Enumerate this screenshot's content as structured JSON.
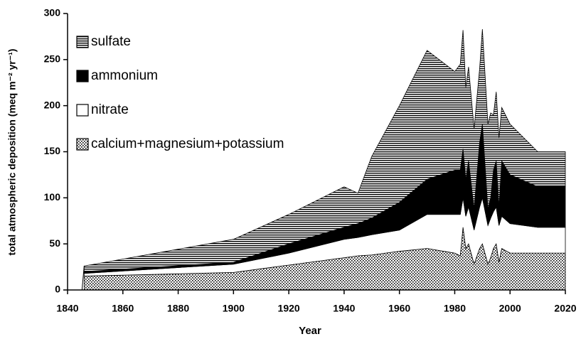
{
  "chart_data": {
    "type": "stacked-area",
    "x_label": "Year",
    "y_label": "total atmospheric deposition (meq m⁻² yr⁻¹)",
    "x": [
      1846,
      1900,
      1920,
      1940,
      1945,
      1950,
      1960,
      1970,
      1980,
      1982,
      1983,
      1984,
      1985,
      1987,
      1989,
      1990,
      1992,
      1993,
      1994,
      1995,
      1996,
      1997,
      2000,
      2010,
      2020
    ],
    "series": [
      {
        "name": "calcium+magnesium+potassium",
        "color": "#000000",
        "pattern": "dots",
        "values": [
          15,
          19,
          27,
          35,
          37,
          38,
          42,
          45,
          40,
          37,
          68,
          45,
          50,
          28,
          45,
          50,
          28,
          35,
          45,
          50,
          30,
          45,
          40,
          40,
          40
        ]
      },
      {
        "name": "nitrate",
        "color": "#ffffff",
        "pattern": "none",
        "values": [
          3,
          9,
          13,
          20,
          20,
          22,
          23,
          37,
          42,
          45,
          32,
          35,
          40,
          37,
          45,
          50,
          42,
          43,
          40,
          40,
          40,
          35,
          32,
          28,
          28
        ]
      },
      {
        "name": "ammonium",
        "color": "#000000",
        "pattern": "solid",
        "values": [
          2,
          2,
          10,
          13,
          15,
          18,
          30,
          38,
          48,
          48,
          53,
          40,
          50,
          23,
          70,
          80,
          18,
          22,
          45,
          50,
          20,
          60,
          53,
          44,
          44
        ]
      },
      {
        "name": "sulfate",
        "color": "#000000",
        "pattern": "hlines",
        "values": [
          6,
          25,
          32,
          44,
          33,
          67,
          105,
          140,
          107,
          115,
          129,
          100,
          102,
          87,
          80,
          103,
          92,
          92,
          60,
          75,
          75,
          58,
          55,
          38,
          38
        ]
      }
    ],
    "xlim": [
      1840,
      2020
    ],
    "xticks": [
      1840,
      1860,
      1880,
      1900,
      1920,
      1940,
      1960,
      1980,
      2000,
      2020
    ],
    "ylim": [
      0,
      300
    ],
    "yticks": [
      0,
      50,
      100,
      150,
      200,
      250,
      300
    ],
    "legend": "upper-left"
  }
}
